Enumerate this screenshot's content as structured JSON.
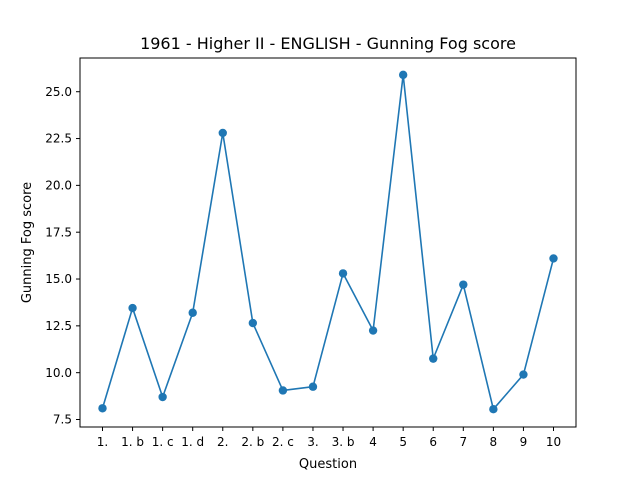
{
  "chart_data": {
    "type": "line",
    "title": "1961 - Higher II - ENGLISH - Gunning Fog score",
    "xlabel": "Question",
    "ylabel": "Gunning Fog score",
    "categories": [
      "1.",
      "1. b",
      "1. c",
      "1. d",
      "2.",
      "2. b",
      "2. c",
      "3.",
      "3. b",
      "4",
      "5",
      "6",
      "7",
      "8",
      "9",
      "10"
    ],
    "series": [
      {
        "values": [
          8.1,
          13.45,
          8.7,
          13.2,
          22.8,
          12.65,
          9.05,
          9.25,
          15.3,
          12.25,
          25.9,
          10.75,
          14.7,
          8.05,
          9.9,
          16.1
        ]
      }
    ],
    "ylim": [
      7.1,
      26.8
    ],
    "yticks": [
      7.5,
      10.0,
      12.5,
      15.0,
      17.5,
      20.0,
      22.5,
      25.0
    ],
    "yticklabels": [
      "7.5",
      "10.0",
      "12.5",
      "15.0",
      "17.5",
      "20.0",
      "22.5",
      "25.0"
    ],
    "grid": false,
    "colors": {
      "line": "#1f77b4",
      "marker": "#1f77b4",
      "axes": "#000000",
      "background": "#ffffff"
    }
  }
}
